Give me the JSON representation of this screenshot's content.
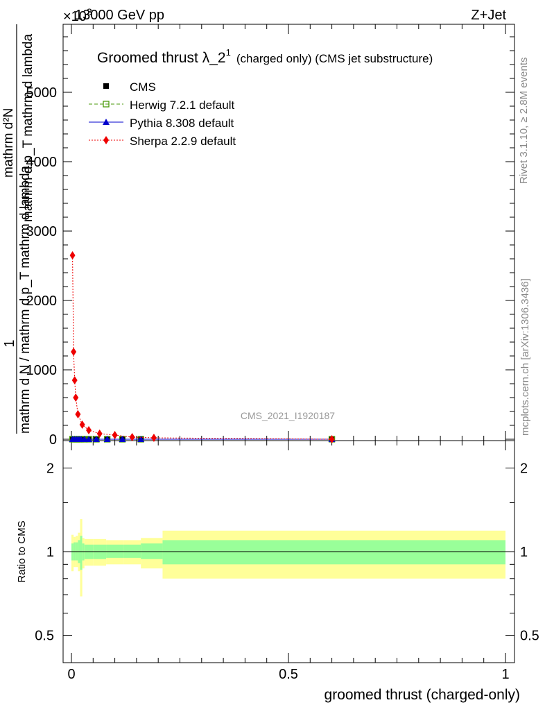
{
  "header": {
    "energy": "13000 GeV pp",
    "process": "Z+Jet",
    "exponent": "×10",
    "exponent_power": "3"
  },
  "side_labels": {
    "rivet": "Rivet 3.1.10, ≥ 2.8M events",
    "mcplots": "mcplots.cern.ch [arXiv:1306.3436]"
  },
  "watermark": "CMS_2021_I1920187",
  "main_plot": {
    "title_main": "Groomed thrust λ_2",
    "title_sup": "1",
    "title_suffix": "(charged only) (CMS jet substructure)",
    "ylabel_left_1": "1",
    "ylabel_numerator": "mathrm d²N",
    "ylabel_denominator": "mathrm d N / mathrm d p_T mathrm d lambda",
    "ylabel_extra": "mathrm d p_T mathrm d lambda"
  },
  "ratio_plot": {
    "ylabel": "Ratio to CMS",
    "xlabel": "groomed thrust (charged-only)"
  },
  "chart_data": [
    {
      "type": "line",
      "panel": "main",
      "xlim": [
        0,
        1
      ],
      "ylim": [
        0,
        5900
      ],
      "y_scale_note": "×10^3",
      "xticks": [
        "0",
        "0.5",
        "1"
      ],
      "yticks": [
        "0",
        "1000",
        "2000",
        "3000",
        "4000",
        "5000"
      ],
      "legend_position": "top-left",
      "series": [
        {
          "name": "CMS",
          "color": "#000000",
          "marker": "square",
          "x": [
            0.0025,
            0.0075,
            0.0125,
            0.0175,
            0.0225,
            0.03,
            0.04,
            0.0575,
            0.0825,
            0.1175,
            0.16,
            0.6
          ],
          "y": [
            0,
            0,
            0,
            0,
            0,
            0,
            0,
            0,
            0,
            0,
            0,
            0
          ]
        },
        {
          "name": "Herwig 7.2.1 default",
          "color": "#4a9a0a",
          "marker": "open-square",
          "x": [
            0.0025,
            0.0075,
            0.0125,
            0.0175,
            0.0225,
            0.03,
            0.04,
            0.0575,
            0.0825,
            0.1175,
            0.16,
            0.6
          ],
          "y": [
            0,
            0,
            0,
            0,
            0,
            0,
            0,
            0,
            0,
            0,
            0,
            0
          ]
        },
        {
          "name": "Pythia 8.308 default",
          "color": "#0000cc",
          "marker": "triangle",
          "x": [
            0.0025,
            0.0075,
            0.0125,
            0.0175,
            0.0225,
            0.03,
            0.04,
            0.0575,
            0.0825,
            0.1175,
            0.16,
            0.6
          ],
          "y": [
            0,
            0,
            0,
            0,
            0,
            0,
            0,
            0,
            0,
            0,
            0,
            0
          ]
        },
        {
          "name": "Sherpa 2.2.9 default",
          "color": "#ee0000",
          "marker": "diamond",
          "x": [
            0.0025,
            0.005,
            0.0075,
            0.01,
            0.015,
            0.025,
            0.04,
            0.065,
            0.1,
            0.14,
            0.19,
            0.6
          ],
          "y": [
            2650,
            1260,
            850,
            600,
            360,
            210,
            130,
            80,
            60,
            30,
            20,
            0
          ]
        }
      ]
    },
    {
      "type": "area",
      "panel": "ratio",
      "xlim": [
        0,
        1
      ],
      "ylim": [
        0.35,
        2.25
      ],
      "yticks": [
        "0.5",
        "1",
        "2"
      ],
      "xticks": [
        "0",
        "0.5",
        "1"
      ],
      "reference_line": 1,
      "bin_edges": [
        0,
        0.005,
        0.01,
        0.015,
        0.02,
        0.025,
        0.03,
        0.05,
        0.08,
        0.12,
        0.16,
        0.21,
        1.0
      ],
      "band_inner": {
        "color": "#99ff99",
        "lo": [
          0.93,
          0.93,
          0.93,
          0.91,
          0.86,
          0.93,
          0.94,
          0.94,
          0.95,
          0.95,
          0.94,
          0.9
        ],
        "hi": [
          1.07,
          1.08,
          1.08,
          1.1,
          1.14,
          1.07,
          1.06,
          1.06,
          1.06,
          1.06,
          1.07,
          1.1
        ]
      },
      "band_outer": {
        "color": "#ffff99",
        "lo": [
          0.85,
          0.88,
          0.88,
          0.85,
          0.69,
          0.87,
          0.89,
          0.89,
          0.9,
          0.9,
          0.87,
          0.8
        ],
        "hi": [
          1.15,
          1.13,
          1.14,
          1.17,
          1.31,
          1.12,
          1.11,
          1.11,
          1.1,
          1.1,
          1.12,
          1.19
        ]
      }
    }
  ]
}
